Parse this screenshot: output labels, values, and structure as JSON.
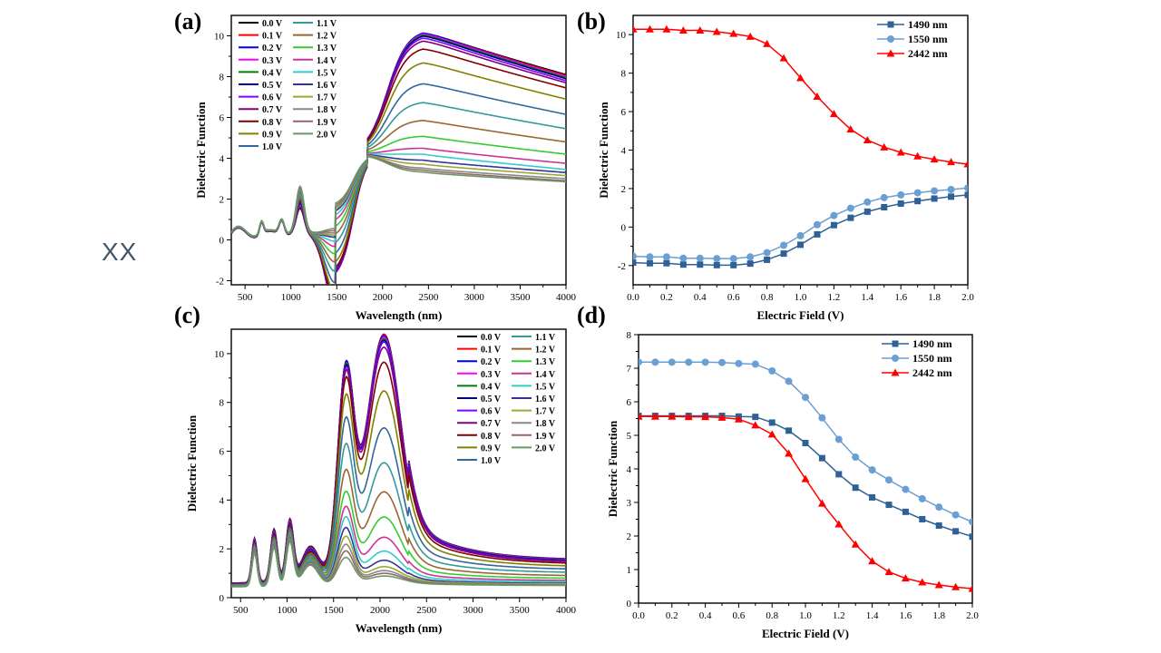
{
  "side_label": "XX",
  "chart_data": [
    {
      "id": "a",
      "panel_label": "(a)",
      "type": "line",
      "xlabel": "Wavelength (nm)",
      "ylabel": "Dielectric Function",
      "xlim": [
        350,
        4000
      ],
      "ylim": [
        -2.2,
        11
      ],
      "xticks": [
        500,
        1000,
        1500,
        2000,
        2500,
        3000,
        3500,
        4000
      ],
      "yticks": [
        -2,
        0,
        2,
        4,
        6,
        8,
        10
      ],
      "grid": false,
      "legend": {
        "placement": "top-left",
        "columns": 2
      },
      "model": "real",
      "series_params": {
        "names": [
          "0.0 V",
          "0.1 V",
          "0.2 V",
          "0.3 V",
          "0.4 V",
          "0.5 V",
          "0.6 V",
          "0.7 V",
          "0.8 V",
          "0.9 V",
          "1.0 V",
          "1.1 V",
          "1.2 V",
          "1.3 V",
          "1.4 V",
          "1.5 V",
          "1.6 V",
          "1.7 V",
          "1.8 V",
          "1.9 V",
          "2.0 V"
        ],
        "colors": [
          "#000000",
          "#FF0000",
          "#0000FF",
          "#FF00FF",
          "#008000",
          "#000080",
          "#8000FF",
          "#800080",
          "#800000",
          "#808000",
          "#336699",
          "#339999",
          "#996633",
          "#33CC33",
          "#CC3399",
          "#33CCCC",
          "#333399",
          "#99AA33",
          "#888888",
          "#996666",
          "#669966"
        ],
        "peak_value_at_2442nm": [
          10.3,
          10.3,
          10.3,
          10.25,
          10.2,
          10.15,
          10.05,
          9.9,
          9.5,
          8.8,
          7.75,
          6.8,
          5.9,
          5.1,
          4.5,
          4.2,
          3.9,
          3.7,
          3.5,
          3.4,
          3.3
        ],
        "value_at_4000nm": [
          8.1,
          8.05,
          8.0,
          8.0,
          7.95,
          7.9,
          7.8,
          7.7,
          7.45,
          6.9,
          6.15,
          5.45,
          4.8,
          4.2,
          3.75,
          3.45,
          3.3,
          3.15,
          3.0,
          2.9,
          2.85
        ],
        "min_value_at_1490nm": [
          -1.85,
          -1.85,
          -1.85,
          -1.95,
          -1.95,
          -1.98,
          -1.98,
          -1.9,
          -1.7,
          -1.4,
          -0.95,
          -0.4,
          0.05,
          0.45,
          0.8,
          1.05,
          1.25,
          1.35,
          1.45,
          1.55,
          1.65
        ]
      }
    },
    {
      "id": "b",
      "panel_label": "(b)",
      "type": "line",
      "xlabel": "Electric Field (V)",
      "ylabel": "Dielectric Function",
      "xlim": [
        0,
        2.0
      ],
      "ylim": [
        -3,
        11
      ],
      "xticks": [
        0.0,
        0.2,
        0.4,
        0.6,
        0.8,
        1.0,
        1.2,
        1.4,
        1.6,
        1.8,
        2.0
      ],
      "yticks": [
        -2,
        0,
        2,
        4,
        6,
        8,
        10
      ],
      "grid": false,
      "legend": {
        "placement": "top-right"
      },
      "x": [
        0.0,
        0.1,
        0.2,
        0.3,
        0.4,
        0.5,
        0.6,
        0.7,
        0.8,
        0.9,
        1.0,
        1.1,
        1.2,
        1.3,
        1.4,
        1.5,
        1.6,
        1.7,
        1.8,
        1.9,
        2.0
      ],
      "series": [
        {
          "name": "1490 nm",
          "color": "#2F6096",
          "marker": "square",
          "values": [
            -1.85,
            -1.88,
            -1.88,
            -1.95,
            -1.95,
            -1.98,
            -1.98,
            -1.9,
            -1.7,
            -1.38,
            -0.92,
            -0.38,
            0.1,
            0.48,
            0.8,
            1.03,
            1.22,
            1.35,
            1.48,
            1.58,
            1.67
          ]
        },
        {
          "name": "1550 nm",
          "color": "#6A9FD4",
          "marker": "circle",
          "values": [
            -1.52,
            -1.55,
            -1.55,
            -1.62,
            -1.62,
            -1.64,
            -1.64,
            -1.55,
            -1.33,
            -0.95,
            -0.45,
            0.12,
            0.6,
            0.98,
            1.3,
            1.53,
            1.67,
            1.78,
            1.88,
            1.95,
            2.03
          ]
        },
        {
          "name": "2442 nm",
          "color": "#FF0000",
          "marker": "triangle",
          "values": [
            10.28,
            10.28,
            10.28,
            10.22,
            10.22,
            10.15,
            10.05,
            9.9,
            9.52,
            8.78,
            7.75,
            6.78,
            5.88,
            5.08,
            4.52,
            4.15,
            3.88,
            3.68,
            3.52,
            3.38,
            3.27
          ]
        }
      ]
    },
    {
      "id": "c",
      "panel_label": "(c)",
      "type": "line",
      "xlabel": "Wavelength (nm)",
      "ylabel": "Dielectric Function",
      "xlim": [
        400,
        4000
      ],
      "ylim": [
        0,
        11
      ],
      "xticks": [
        500,
        1000,
        1500,
        2000,
        2500,
        3000,
        3500,
        4000
      ],
      "yticks": [
        0,
        2,
        4,
        6,
        8,
        10
      ],
      "grid": false,
      "legend": {
        "placement": "top-right",
        "columns": 2
      },
      "model": "imag",
      "series_params": {
        "names": [
          "0.0 V",
          "0.1 V",
          "0.2 V",
          "0.3 V",
          "0.4 V",
          "0.5 V",
          "0.6 V",
          "0.7 V",
          "0.8 V",
          "0.9 V",
          "1.0 V",
          "1.1 V",
          "1.2 V",
          "1.3 V",
          "1.4 V",
          "1.5 V",
          "1.6 V",
          "1.7 V",
          "1.8 V",
          "1.9 V",
          "2.0 V"
        ],
        "colors": [
          "#000000",
          "#FF0000",
          "#0000FF",
          "#FF00FF",
          "#008000",
          "#000080",
          "#8000FF",
          "#800080",
          "#800000",
          "#808000",
          "#336699",
          "#339999",
          "#996633",
          "#33CC33",
          "#CC3399",
          "#33CCCC",
          "#333399",
          "#99AA33",
          "#888888",
          "#996666",
          "#669966"
        ],
        "peak_1630nm": [
          9.25,
          9.25,
          9.25,
          9.2,
          9.2,
          9.15,
          9.1,
          9.0,
          8.8,
          8.25,
          7.5,
          6.6,
          5.7,
          4.95,
          4.45,
          4.1,
          3.72,
          3.4,
          3.1,
          2.85,
          2.6
        ],
        "peak_2040nm": [
          10.2,
          10.2,
          10.15,
          10.1,
          10.05,
          10.0,
          9.95,
          9.75,
          9.15,
          8.0,
          6.5,
          5.1,
          3.95,
          2.95,
          2.15,
          1.6,
          1.25,
          1.0,
          0.85,
          0.75,
          0.65
        ],
        "value_at_4000nm": [
          1.05,
          1.05,
          1.05,
          1.04,
          1.03,
          1.02,
          1.0,
          0.98,
          0.93,
          0.83,
          0.72,
          0.6,
          0.48,
          0.38,
          0.3,
          0.25,
          0.2,
          0.18,
          0.16,
          0.15,
          0.14
        ]
      }
    },
    {
      "id": "d",
      "panel_label": "(d)",
      "type": "line",
      "xlabel": "Electric Field (V)",
      "ylabel": "Dielectric Function",
      "xlim": [
        0,
        2.0
      ],
      "ylim": [
        0,
        8
      ],
      "xticks": [
        0.0,
        0.2,
        0.4,
        0.6,
        0.8,
        1.0,
        1.2,
        1.4,
        1.6,
        1.8,
        2.0
      ],
      "yticks": [
        0,
        1,
        2,
        3,
        4,
        5,
        6,
        7,
        8
      ],
      "grid": false,
      "legend": {
        "placement": "top-right"
      },
      "x": [
        0.0,
        0.1,
        0.2,
        0.3,
        0.4,
        0.5,
        0.6,
        0.7,
        0.8,
        0.9,
        1.0,
        1.1,
        1.2,
        1.3,
        1.4,
        1.5,
        1.6,
        1.7,
        1.8,
        1.9,
        2.0
      ],
      "series": [
        {
          "name": "1490 nm",
          "color": "#2F6096",
          "marker": "square",
          "values": [
            5.58,
            5.58,
            5.58,
            5.58,
            5.58,
            5.58,
            5.56,
            5.55,
            5.38,
            5.14,
            4.77,
            4.32,
            3.84,
            3.44,
            3.15,
            2.93,
            2.72,
            2.5,
            2.31,
            2.14,
            1.98
          ]
        },
        {
          "name": "1550 nm",
          "color": "#6A9FD4",
          "marker": "circle",
          "values": [
            7.18,
            7.18,
            7.18,
            7.18,
            7.18,
            7.17,
            7.14,
            7.12,
            6.92,
            6.61,
            6.13,
            5.52,
            4.88,
            4.35,
            3.97,
            3.67,
            3.39,
            3.11,
            2.86,
            2.63,
            2.42
          ]
        },
        {
          "name": "2442 nm",
          "color": "#FF0000",
          "marker": "triangle",
          "values": [
            5.56,
            5.56,
            5.56,
            5.55,
            5.55,
            5.53,
            5.48,
            5.3,
            5.03,
            4.46,
            3.7,
            2.97,
            2.35,
            1.75,
            1.25,
            0.93,
            0.74,
            0.62,
            0.54,
            0.48,
            0.43
          ]
        }
      ]
    }
  ]
}
